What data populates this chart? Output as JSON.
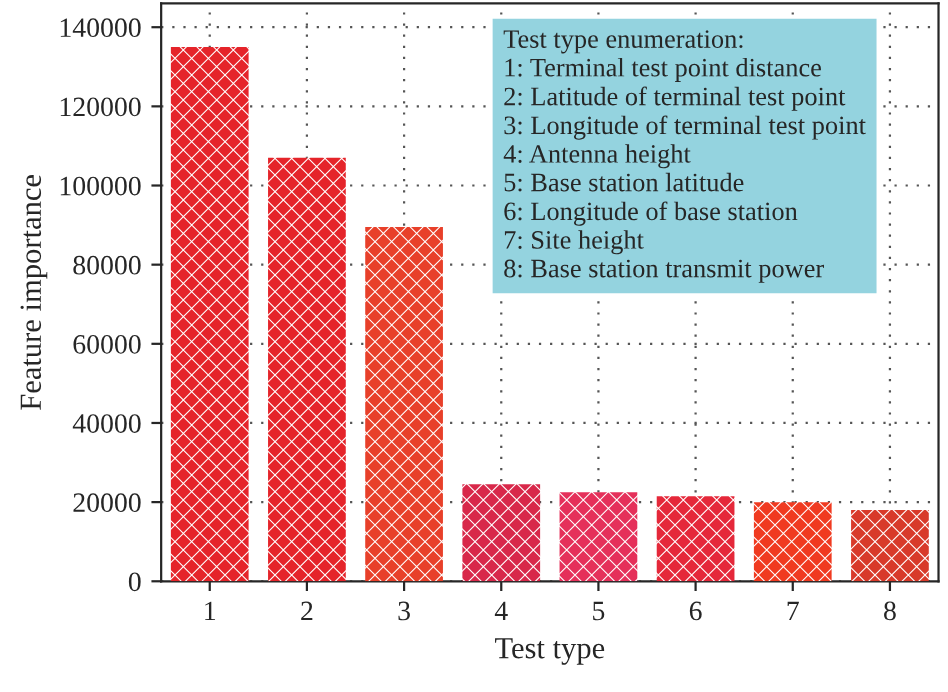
{
  "chart_data": {
    "type": "bar",
    "xlabel": "Test type",
    "ylabel": "Feature importance",
    "categories": [
      "1",
      "2",
      "3",
      "4",
      "5",
      "6",
      "7",
      "8"
    ],
    "values": [
      135000,
      107000,
      89500,
      24500,
      22500,
      21500,
      20000,
      18000
    ],
    "colors": [
      "#e5242a",
      "#e5242a",
      "#e8402a",
      "#d8284a",
      "#e5305a",
      "#e5283a",
      "#f03a20",
      "#d83a2a"
    ],
    "ylim": [
      0,
      146000
    ],
    "yticks": [
      0,
      20000,
      40000,
      60000,
      80000,
      100000,
      120000,
      140000
    ],
    "grid": true,
    "legend": false,
    "annotations": [
      "Test type enumeration:\n1: Terminal test point distance\n2: Latitude of terminal test point\n3: Longitude of terminal test point\n4: Antenna height\n5: Base station latitude\n6: Longitude of base station\n7: Site height\n8: Base station transmit power"
    ]
  }
}
